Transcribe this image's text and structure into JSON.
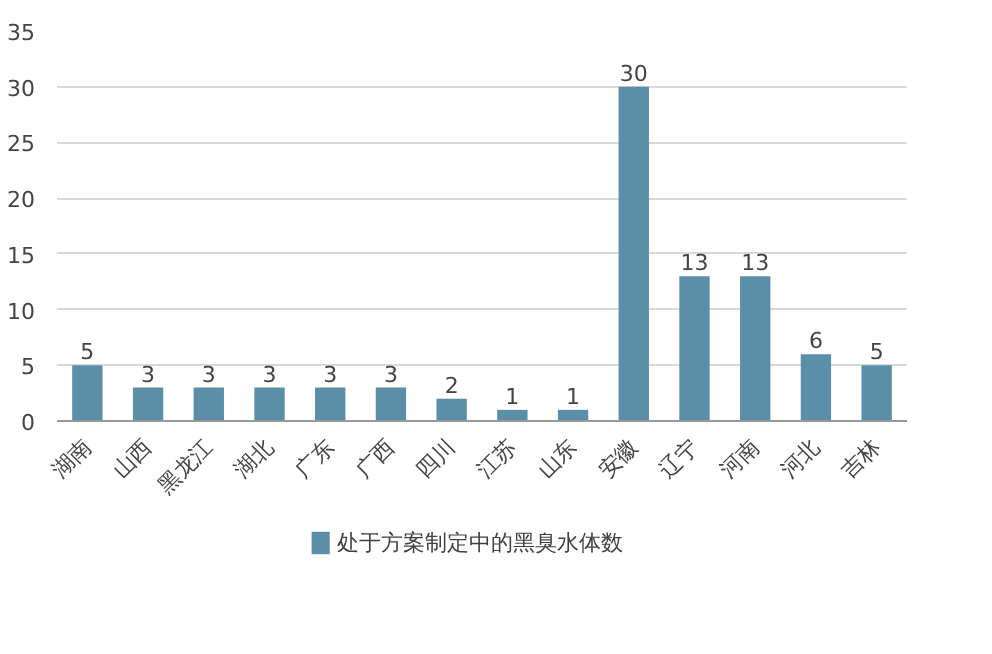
{
  "chart_data": {
    "type": "bar",
    "categories": [
      "湖南",
      "山西",
      "黑龙江",
      "湖北",
      "广东",
      "广西",
      "四川",
      "江苏",
      "山东",
      "安徽",
      "辽宁",
      "河南",
      "河北",
      "吉林"
    ],
    "series": [
      {
        "name": "处于方案制定中的黑臭水体数",
        "color": "#5b8fa8",
        "values": [
          5,
          3,
          3,
          3,
          3,
          3,
          2,
          1,
          1,
          30,
          13,
          13,
          6,
          5
        ]
      }
    ],
    "ylim": [
      0,
      35
    ],
    "yticks": [
      0,
      5,
      10,
      15,
      20,
      25,
      30,
      35
    ],
    "grid": "y",
    "legend": "bottom",
    "data_labels": true
  }
}
